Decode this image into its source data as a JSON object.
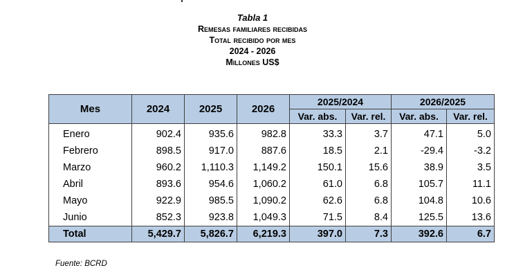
{
  "title": {
    "line1": "Tabla 1",
    "line2": "Remesas familiares recibidas",
    "line3": "Total recibido por mes",
    "line4": "2024 - 2026",
    "line5": "Millones US$"
  },
  "table": {
    "header": {
      "mes": "Mes",
      "y2024": "2024",
      "y2025": "2025",
      "y2026": "2026",
      "group1": "2025/2024",
      "group2": "2026/2025",
      "var_abs": "Var. abs.",
      "var_rel": "Var. rel."
    },
    "rows": [
      {
        "mes": "Enero",
        "y2024": "902.4",
        "y2025": "935.6",
        "y2026": "982.8",
        "va1": "33.3",
        "vr1": "3.7",
        "va2": "47.1",
        "vr2": "5.0"
      },
      {
        "mes": "Febrero",
        "y2024": "898.5",
        "y2025": "917.0",
        "y2026": "887.6",
        "va1": "18.5",
        "vr1": "2.1",
        "va2": "-29.4",
        "vr2": "-3.2"
      },
      {
        "mes": "Marzo",
        "y2024": "960.2",
        "y2025": "1,110.3",
        "y2026": "1,149.2",
        "va1": "150.1",
        "vr1": "15.6",
        "va2": "38.9",
        "vr2": "3.5"
      },
      {
        "mes": "Abril",
        "y2024": "893.6",
        "y2025": "954.6",
        "y2026": "1,060.2",
        "va1": "61.0",
        "vr1": "6.8",
        "va2": "105.7",
        "vr2": "11.1"
      },
      {
        "mes": "Mayo",
        "y2024": "922.9",
        "y2025": "985.5",
        "y2026": "1,090.2",
        "va1": "62.6",
        "vr1": "6.8",
        "va2": "104.8",
        "vr2": "10.6"
      },
      {
        "mes": "Junio",
        "y2024": "852.3",
        "y2025": "923.8",
        "y2026": "1,049.3",
        "va1": "71.5",
        "vr1": "8.4",
        "va2": "125.5",
        "vr2": "13.6"
      }
    ],
    "total": {
      "mes": "Total",
      "y2024": "5,429.7",
      "y2025": "5,826.7",
      "y2026": "6,219.3",
      "va1": "397.0",
      "vr1": "7.3",
      "va2": "392.6",
      "vr2": "6.7"
    }
  },
  "source": "Fuente: BCRD",
  "colors": {
    "header_fill": "#b8cde4",
    "border": "#3f3f3f"
  }
}
